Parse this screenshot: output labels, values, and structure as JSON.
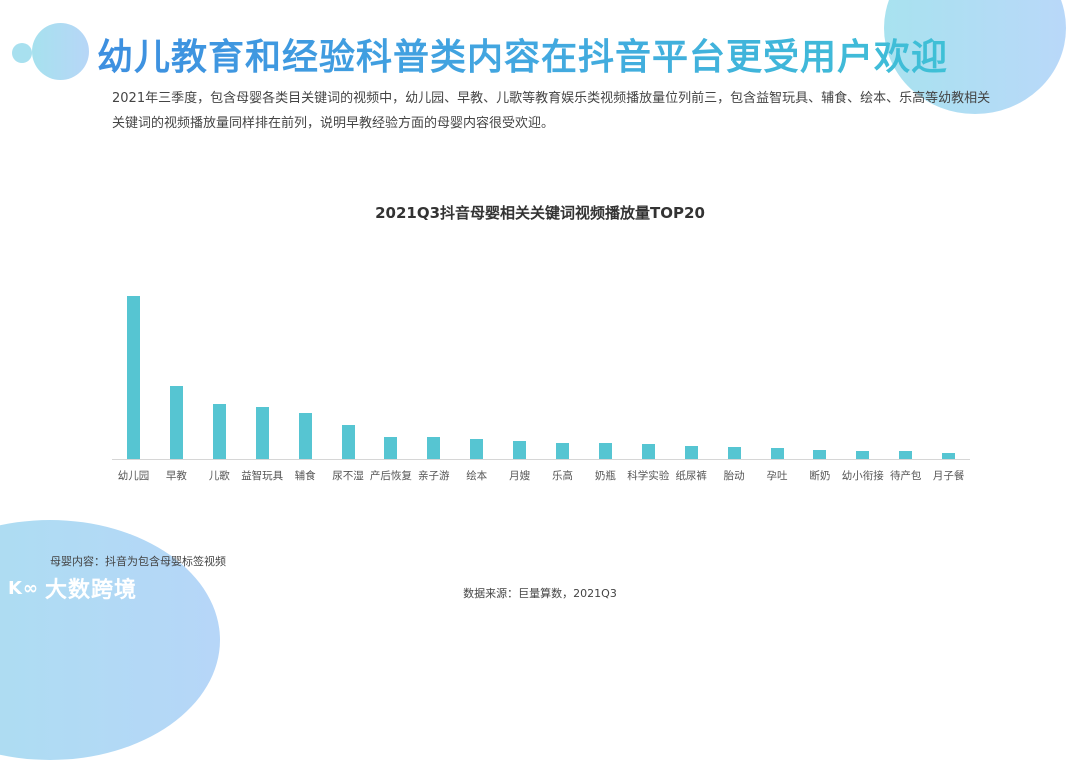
{
  "header": {
    "title": "幼儿教育和经验科普类内容在抖音平台更受用户欢迎",
    "description": "2021年三季度，包含母婴各类目关键词的视频中，幼儿园、早教、儿歌等教育娱乐类视频播放量位列前三，包含益智玩具、辅食、绘本、乐高等幼教相关关键词的视频播放量同样排在前列，说明早教经验方面的母婴内容很受欢迎。"
  },
  "colors": {
    "bar": "#56c5d2",
    "title_start": "#3d8fe0",
    "title_end": "#3fc0d6",
    "decor": "#a8e2ef"
  },
  "chart_data": {
    "type": "bar",
    "title": "2021Q3抖音母婴相关关键词视频播放量TOP20",
    "xlabel": "",
    "ylabel": "",
    "grid": false,
    "legend": null,
    "categories": [
      "幼儿园",
      "早教",
      "儿歌",
      "益智玩具",
      "辅食",
      "尿不湿",
      "产后恢复",
      "亲子游",
      "绘本",
      "月嫂",
      "乐高",
      "奶瓶",
      "科学实验",
      "纸尿裤",
      "胎动",
      "孕吐",
      "断奶",
      "幼小衔接",
      "待产包",
      "月子餐"
    ],
    "values": [
      163,
      73,
      55,
      52,
      46,
      34,
      22,
      22,
      20,
      18,
      16,
      16,
      15,
      13,
      12,
      11,
      9,
      8,
      8,
      6
    ],
    "ylim": [
      0,
      180
    ],
    "note": "relative bar heights (unitless, no axis shown)"
  },
  "footer": {
    "note": "母婴内容：抖音为包含母婴标签视频",
    "logo_mark": "K∞",
    "logo_text": "大数跨境",
    "source": "数据来源：巨量算数，2021Q3"
  }
}
